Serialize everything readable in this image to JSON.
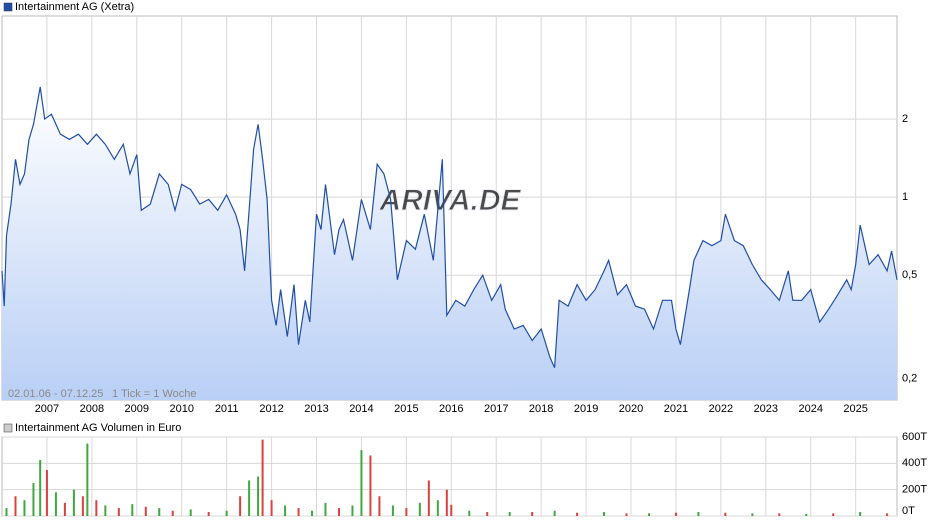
{
  "chart_data": [
    {
      "type": "line",
      "title": "Intertainment AG (Xetra)",
      "color": "#1f4fa8",
      "log_scale": true,
      "grid": true,
      "subtitle": "02.01.06 - 07.12.25",
      "note": "1 Tick = 1 Woche",
      "watermark": "ARIVA.DE",
      "x": [
        2006.0,
        2006.05,
        2006.1,
        2006.2,
        2006.3,
        2006.4,
        2006.5,
        2006.6,
        2006.7,
        2006.85,
        2006.95,
        2007.1,
        2007.3,
        2007.5,
        2007.7,
        2007.9,
        2008.1,
        2008.3,
        2008.5,
        2008.7,
        2008.85,
        2009.0,
        2009.1,
        2009.3,
        2009.5,
        2009.7,
        2009.85,
        2010.0,
        2010.2,
        2010.4,
        2010.6,
        2010.8,
        2011.0,
        2011.2,
        2011.3,
        2011.4,
        2011.5,
        2011.6,
        2011.7,
        2011.8,
        2011.9,
        2012.0,
        2012.1,
        2012.2,
        2012.35,
        2012.5,
        2012.6,
        2012.75,
        2012.85,
        2013.0,
        2013.1,
        2013.2,
        2013.4,
        2013.5,
        2013.6,
        2013.8,
        2014.0,
        2014.2,
        2014.35,
        2014.5,
        2014.65,
        2014.8,
        2015.0,
        2015.2,
        2015.4,
        2015.6,
        2015.8,
        2015.9,
        2016.1,
        2016.3,
        2016.5,
        2016.7,
        2016.9,
        2017.1,
        2017.2,
        2017.4,
        2017.6,
        2017.8,
        2018.0,
        2018.2,
        2018.3,
        2018.4,
        2018.6,
        2018.8,
        2019.0,
        2019.2,
        2019.4,
        2019.5,
        2019.7,
        2019.9,
        2020.1,
        2020.3,
        2020.5,
        2020.7,
        2020.9,
        2021.0,
        2021.1,
        2021.3,
        2021.4,
        2021.6,
        2021.8,
        2022.0,
        2022.1,
        2022.3,
        2022.5,
        2022.7,
        2022.9,
        2023.1,
        2023.3,
        2023.5,
        2023.6,
        2023.8,
        2024.0,
        2024.2,
        2024.4,
        2024.6,
        2024.8,
        2024.9,
        2025.0,
        2025.1,
        2025.3,
        2025.5,
        2025.7,
        2025.8,
        2025.92
      ],
      "values": [
        0.52,
        0.38,
        0.71,
        0.94,
        1.4,
        1.12,
        1.23,
        1.67,
        1.91,
        2.66,
        2.0,
        2.09,
        1.75,
        1.67,
        1.75,
        1.6,
        1.75,
        1.6,
        1.4,
        1.6,
        1.23,
        1.46,
        0.89,
        0.94,
        1.23,
        1.12,
        0.89,
        1.12,
        1.07,
        0.94,
        0.98,
        0.89,
        1.02,
        0.86,
        0.75,
        0.52,
        0.89,
        1.53,
        1.91,
        1.4,
        0.98,
        0.4,
        0.32,
        0.44,
        0.29,
        0.46,
        0.27,
        0.4,
        0.33,
        0.86,
        0.75,
        1.12,
        0.6,
        0.75,
        0.82,
        0.57,
        0.98,
        0.75,
        1.34,
        1.23,
        0.98,
        0.48,
        0.68,
        0.63,
        0.86,
        0.57,
        1.4,
        0.35,
        0.4,
        0.38,
        0.44,
        0.5,
        0.4,
        0.46,
        0.37,
        0.31,
        0.32,
        0.28,
        0.31,
        0.24,
        0.22,
        0.4,
        0.38,
        0.46,
        0.4,
        0.44,
        0.52,
        0.57,
        0.42,
        0.46,
        0.38,
        0.37,
        0.31,
        0.4,
        0.4,
        0.31,
        0.27,
        0.44,
        0.57,
        0.68,
        0.65,
        0.68,
        0.86,
        0.68,
        0.65,
        0.55,
        0.48,
        0.44,
        0.4,
        0.52,
        0.4,
        0.4,
        0.44,
        0.33,
        0.37,
        0.42,
        0.48,
        0.44,
        0.55,
        0.78,
        0.55,
        0.6,
        0.52,
        0.62,
        0.48
      ],
      "xlim": [
        2006.0,
        2025.92
      ],
      "xticks": [
        2007,
        2008,
        2009,
        2010,
        2011,
        2012,
        2013,
        2014,
        2015,
        2016,
        2017,
        2018,
        2019,
        2020,
        2021,
        2022,
        2023,
        2024,
        2025
      ],
      "ylim": [
        0.165,
        5
      ],
      "yticks": [
        {
          "value": 0.2,
          "label": "0,2"
        },
        {
          "value": 0.5,
          "label": "0,5"
        },
        1,
        2
      ]
    },
    {
      "type": "bar",
      "title": "Intertainment AG Volumen in Euro",
      "grid": true,
      "x": [
        2006.1,
        2006.3,
        2006.5,
        2006.7,
        2006.85,
        2007.0,
        2007.2,
        2007.4,
        2007.6,
        2007.8,
        2007.9,
        2008.1,
        2008.3,
        2008.6,
        2008.9,
        2009.2,
        2009.5,
        2009.8,
        2010.2,
        2010.6,
        2011.0,
        2011.3,
        2011.5,
        2011.7,
        2011.8,
        2012.0,
        2012.3,
        2012.6,
        2012.9,
        2013.2,
        2013.5,
        2013.8,
        2014.0,
        2014.2,
        2014.4,
        2014.7,
        2015.0,
        2015.3,
        2015.5,
        2015.7,
        2015.9,
        2016.0,
        2016.4,
        2016.8,
        2017.3,
        2017.8,
        2018.3,
        2018.8,
        2019.4,
        2019.9,
        2020.4,
        2021.0,
        2021.5,
        2022.1,
        2022.7,
        2023.3,
        2023.9,
        2024.5,
        2025.1,
        2025.7
      ],
      "values": [
        60,
        150,
        120,
        250,
        425,
        350,
        180,
        100,
        200,
        150,
        550,
        120,
        80,
        60,
        90,
        70,
        60,
        40,
        50,
        30,
        40,
        150,
        270,
        300,
        580,
        120,
        80,
        60,
        40,
        100,
        60,
        80,
        500,
        460,
        150,
        80,
        60,
        100,
        270,
        120,
        200,
        85,
        40,
        30,
        30,
        30,
        40,
        25,
        30,
        20,
        20,
        25,
        30,
        25,
        20,
        20,
        15,
        20,
        30,
        20
      ],
      "colors": [
        "#3fa83f",
        "#d9423f",
        "#3fa83f",
        "#3fa83f",
        "#3fa83f",
        "#d9423f",
        "#3fa83f",
        "#d9423f",
        "#3fa83f",
        "#d9423f",
        "#3fa83f",
        "#d9423f",
        "#3fa83f",
        "#d9423f",
        "#3fa83f",
        "#d9423f",
        "#3fa83f",
        "#d9423f",
        "#3fa83f",
        "#d9423f",
        "#3fa83f",
        "#d9423f",
        "#3fa83f",
        "#3fa83f",
        "#d9423f",
        "#d9423f",
        "#3fa83f",
        "#d9423f",
        "#3fa83f",
        "#3fa83f",
        "#d9423f",
        "#3fa83f",
        "#3fa83f",
        "#d9423f",
        "#d9423f",
        "#3fa83f",
        "#d9423f",
        "#3fa83f",
        "#d9423f",
        "#3fa83f",
        "#d9423f",
        "#d9423f",
        "#3fa83f",
        "#d9423f",
        "#3fa83f",
        "#d9423f",
        "#3fa83f",
        "#d9423f",
        "#3fa83f",
        "#d9423f",
        "#3fa83f",
        "#d9423f",
        "#3fa83f",
        "#d9423f",
        "#3fa83f",
        "#d9423f",
        "#3fa83f",
        "#d9423f",
        "#3fa83f",
        "#d9423f"
      ],
      "xlim": [
        2006.0,
        2025.92
      ],
      "xticks": [
        2007,
        2008,
        2009,
        2010,
        2011,
        2012,
        2013,
        2014,
        2015,
        2016,
        2017,
        2018,
        2019,
        2020,
        2021,
        2022,
        2023,
        2024,
        2025
      ],
      "ylim": [
        0,
        600
      ],
      "yticks": [
        {
          "value": 0,
          "label": "0T"
        },
        {
          "value": 200,
          "label": "200T"
        },
        {
          "value": 400,
          "label": "400T"
        },
        {
          "value": 600,
          "label": "600T"
        }
      ]
    }
  ]
}
